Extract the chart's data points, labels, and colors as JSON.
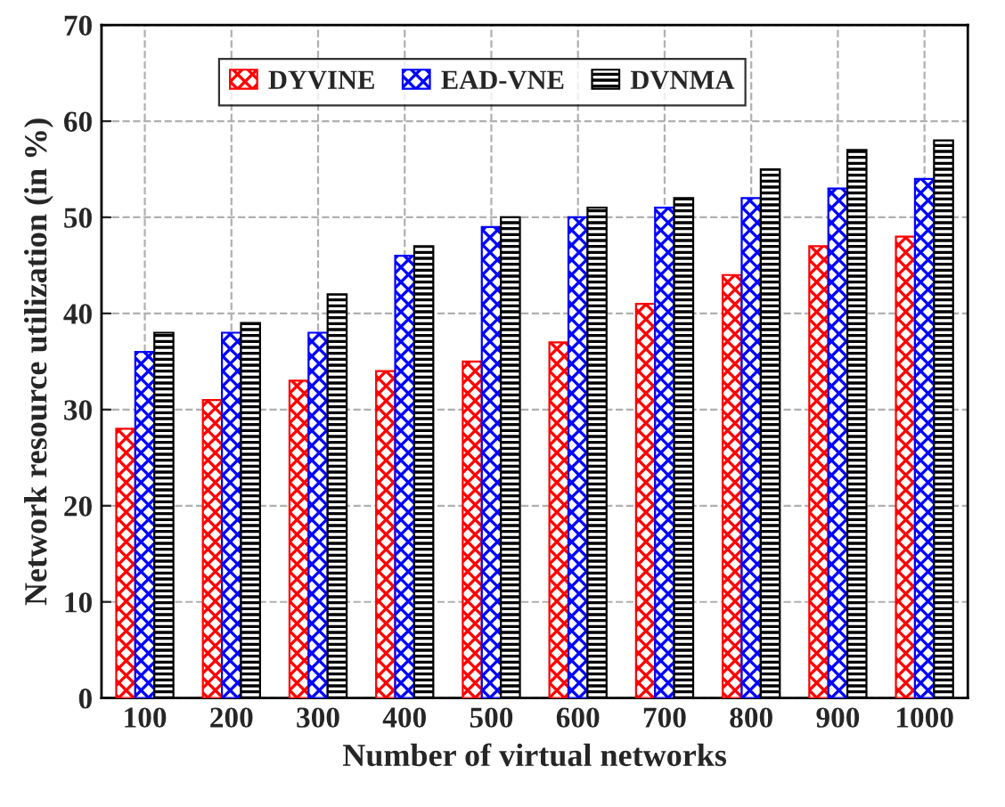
{
  "chart_data": {
    "type": "bar",
    "xlabel": "Number of virtual networks",
    "ylabel": "Network resource utilization (in %)",
    "categories": [
      "100",
      "200",
      "300",
      "400",
      "500",
      "600",
      "700",
      "800",
      "900",
      "1000"
    ],
    "series": [
      {
        "name": "DYVINE",
        "color": "#ff0000",
        "values": [
          28,
          31,
          33,
          34,
          35,
          37,
          41,
          44,
          47,
          48
        ]
      },
      {
        "name": "EAD-VNE",
        "color": "#0000ff",
        "values": [
          36,
          38,
          38,
          46,
          49,
          50,
          51,
          52,
          53,
          54
        ]
      },
      {
        "name": "DVNMA",
        "color": "#000000",
        "values": [
          38,
          39,
          42,
          47,
          50,
          51,
          52,
          55,
          57,
          58
        ]
      }
    ],
    "ylim": [
      0,
      70
    ],
    "yticks": [
      0,
      10,
      20,
      30,
      40,
      50,
      60,
      70
    ],
    "grid": true,
    "legend": "top left"
  }
}
